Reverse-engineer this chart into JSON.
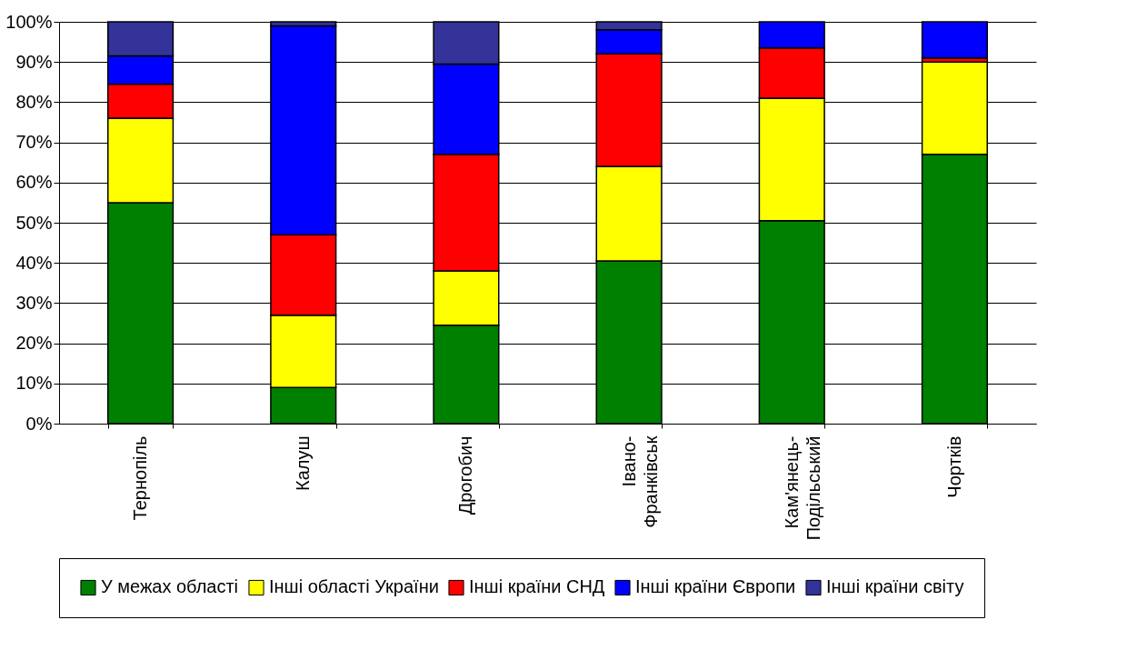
{
  "chart_data": {
    "type": "bar",
    "stacked": true,
    "categories": [
      "Тернопіль",
      "Калуш",
      "Дрогобич",
      "Івано-Франківськ",
      "Кам'янець-Подільський",
      "Чортків"
    ],
    "series": [
      {
        "name": "У межах області",
        "color": "#008000",
        "values": [
          55,
          9,
          24.5,
          40.5,
          50.5,
          67
        ]
      },
      {
        "name": "Інші області України",
        "color": "#ffff00",
        "values": [
          21,
          18,
          13.5,
          23.5,
          30.5,
          23
        ]
      },
      {
        "name": "Інші країни СНД",
        "color": "#ff0000",
        "values": [
          8.5,
          20,
          29,
          28,
          12.5,
          1
        ]
      },
      {
        "name": "Інші країни Європи",
        "color": "#0000ff",
        "values": [
          7,
          52,
          22.5,
          6,
          6.5,
          9
        ]
      },
      {
        "name": "Інші країни світу",
        "color": "#333399",
        "values": [
          8.5,
          1,
          10.5,
          2,
          0,
          0
        ]
      }
    ],
    "ylim": [
      0,
      100
    ],
    "yticks": [
      {
        "value": 0,
        "label": "0%"
      },
      {
        "value": 10,
        "label": "10%"
      },
      {
        "value": 20,
        "label": "20%"
      },
      {
        "value": 30,
        "label": "30%"
      },
      {
        "value": 40,
        "label": "40%"
      },
      {
        "value": 50,
        "label": "50%"
      },
      {
        "value": 60,
        "label": "60%"
      },
      {
        "value": 70,
        "label": "70%"
      },
      {
        "value": 80,
        "label": "80%"
      },
      {
        "value": 90,
        "label": "90%"
      },
      {
        "value": 100,
        "label": "100%"
      }
    ],
    "grid": "y",
    "legend": "bottom"
  }
}
